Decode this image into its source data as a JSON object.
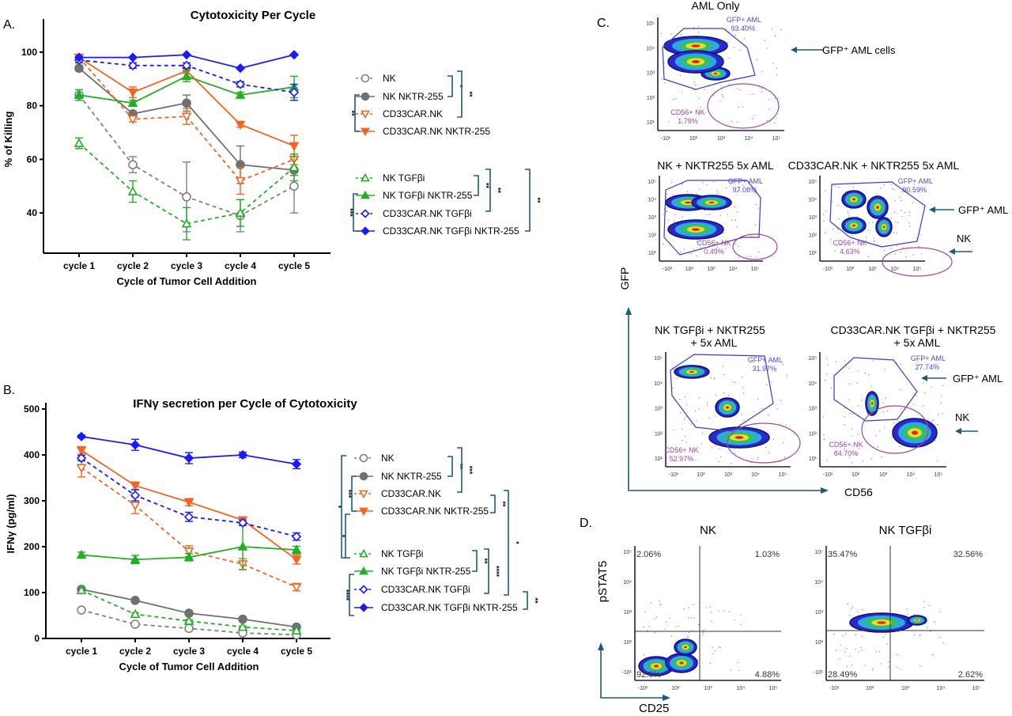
{
  "panels": {
    "a": "A.",
    "b": "B.",
    "c": "C.",
    "d": "D."
  },
  "legend_series": [
    {
      "name": "NK",
      "color": "#808080",
      "marker": "circle",
      "filled": false,
      "dashed": true
    },
    {
      "name": "NK NKTR-255",
      "color": "#707070",
      "marker": "circle",
      "filled": true,
      "dashed": false
    },
    {
      "name": "CD33CAR.NK",
      "color": "#f26522",
      "marker": "tri-down",
      "filled": false,
      "dashed": true
    },
    {
      "name": "CD33CAR.NK NKTR-255",
      "color": "#f26522",
      "marker": "tri-down",
      "filled": true,
      "dashed": false
    },
    {
      "name": "NK TGFβi",
      "color": "#22b022",
      "marker": "tri-up",
      "filled": false,
      "dashed": true
    },
    {
      "name": "NK TGFβi NKTR-255",
      "color": "#22b022",
      "marker": "tri-up",
      "filled": true,
      "dashed": false
    },
    {
      "name": "CD33CAR.NK TGFβi",
      "color": "#1a1aff",
      "marker": "diamond",
      "filled": false,
      "dashed": true
    },
    {
      "name": "CD33CAR.NK TGFβi NKTR-255",
      "color": "#1a1aff",
      "marker": "diamond",
      "filled": true,
      "dashed": false
    }
  ],
  "chart_data": [
    {
      "type": "line",
      "title": "Cytotoxicity Per Cycle",
      "xlabel": "Cycle of Tumor Cell Addition",
      "ylabel": "% of Killing",
      "categories": [
        "cycle 1",
        "cycle 2",
        "cycle 3",
        "cycle 4",
        "cycle 5"
      ],
      "yticks": [
        40,
        60,
        80,
        100
      ],
      "ylim": [
        25,
        110
      ],
      "error_bars": true,
      "legend": "right",
      "series": [
        {
          "name": "NK",
          "values": [
            84,
            58,
            46,
            39,
            50
          ],
          "errors": [
            1,
            3,
            13,
            6,
            10
          ]
        },
        {
          "name": "NK NKTR-255",
          "values": [
            94,
            77,
            81,
            58,
            56
          ],
          "errors": [
            1,
            1,
            3,
            7,
            2
          ]
        },
        {
          "name": "CD33CAR.NK",
          "values": [
            98,
            75,
            76,
            52,
            60
          ],
          "errors": [
            1,
            1,
            3,
            5,
            2
          ]
        },
        {
          "name": "CD33CAR.NK NKTR-255",
          "values": [
            98,
            85,
            93,
            73,
            65
          ],
          "errors": [
            1,
            2,
            1,
            1,
            4
          ]
        },
        {
          "name": "NK TGFβi",
          "values": [
            66,
            48,
            36,
            40,
            57
          ],
          "errors": [
            2,
            4,
            6,
            5,
            5
          ]
        },
        {
          "name": "NK TGFβi NKTR-255",
          "values": [
            84,
            81,
            91,
            84,
            87
          ],
          "errors": [
            2,
            1,
            2,
            1,
            4
          ]
        },
        {
          "name": "CD33CAR.NK TGFβi",
          "values": [
            97,
            95,
            95,
            88,
            85
          ],
          "errors": [
            1,
            1,
            1,
            1,
            3
          ]
        },
        {
          "name": "CD33CAR.NK TGFβi NKTR-255",
          "values": [
            98,
            98,
            99,
            94,
            99
          ],
          "errors": [
            0,
            0,
            0,
            0,
            0
          ]
        }
      ],
      "significance": [
        "*",
        "**",
        "**",
        "**",
        "**",
        "***",
        "**"
      ]
    },
    {
      "type": "line",
      "title": "IFNγ secretion per Cycle of Cytotoxicity",
      "xlabel": "Cycle of Tumor Cell Addition",
      "ylabel": "IFNγ (pg/ml)",
      "categories": [
        "cycle 1",
        "cycle 2",
        "cycle 3",
        "cycle 4",
        "cycle 5"
      ],
      "yticks": [
        0,
        100,
        200,
        300,
        400,
        500
      ],
      "ylim": [
        0,
        500
      ],
      "error_bars": true,
      "legend": "right",
      "series": [
        {
          "name": "NK",
          "values": [
            62,
            31,
            22,
            12,
            8
          ],
          "errors": [
            2,
            2,
            2,
            2,
            1
          ]
        },
        {
          "name": "NK NKTR-255",
          "values": [
            107,
            83,
            55,
            42,
            25
          ],
          "errors": [
            3,
            3,
            2,
            2,
            2
          ]
        },
        {
          "name": "CD33CAR.NK",
          "values": [
            372,
            290,
            190,
            162,
            112
          ],
          "errors": [
            20,
            18,
            12,
            12,
            8
          ]
        },
        {
          "name": "CD33CAR.NK NKTR-255",
          "values": [
            410,
            333,
            297,
            258,
            172
          ],
          "errors": [
            8,
            8,
            8,
            6,
            10
          ]
        },
        {
          "name": "NK TGFβi",
          "values": [
            105,
            53,
            38,
            25,
            17
          ],
          "errors": [
            3,
            3,
            3,
            2,
            2
          ]
        },
        {
          "name": "NK TGFβi NKTR-255",
          "values": [
            182,
            172,
            177,
            200,
            193
          ],
          "errors": [
            6,
            9,
            8,
            50,
            8
          ]
        },
        {
          "name": "CD33CAR.NK TGFβi",
          "values": [
            393,
            312,
            265,
            252,
            222
          ],
          "errors": [
            6,
            12,
            10,
            6,
            8
          ]
        },
        {
          "name": "CD33CAR.NK TGFβi NKTR-255",
          "values": [
            440,
            422,
            393,
            400,
            380
          ],
          "errors": [
            3,
            12,
            12,
            6,
            10
          ]
        }
      ],
      "significance": [
        "***",
        "**",
        "***",
        "**",
        "*",
        "*",
        "**",
        "****",
        "*",
        "****",
        "**"
      ]
    }
  ],
  "flow_c": {
    "x_axis": "CD56",
    "y_axis": "GFP",
    "ticks_x": [
      "-10¹",
      "10²",
      "10³",
      "10⁴",
      "10⁵"
    ],
    "ticks_y": [
      "10⁵",
      "10⁴",
      "10³",
      "10²",
      "10¹"
    ],
    "plots": [
      {
        "title": "AML Only",
        "gfp_gate": "GFP+ AML",
        "gfp_pct": "93.40%",
        "nk_gate": "CD56+ NK",
        "nk_pct": "1.79%",
        "arrow_label": "GFP⁺ AML cells"
      },
      {
        "title": "NK + NKTR255  5x AML",
        "gfp_gate": "GFP+ AML",
        "gfp_pct": "97.08%",
        "nk_gate": "CD56+ NK",
        "nk_pct": "0.49%"
      },
      {
        "title": "CD33CAR.NK + NKTR255   5x AML",
        "gfp_gate": "GFP+ AML",
        "gfp_pct": "90.59%",
        "nk_gate": "CD56+ NK",
        "nk_pct": "4.63%",
        "arrow_label": "GFP⁺ AML",
        "arrow_label2": "NK"
      },
      {
        "title": "NK TGFβi  + NKTR255",
        "title2": "+ 5x AML",
        "gfp_gate": "GFP+ AML",
        "gfp_pct": "31.97%",
        "nk_gate": "CD56+ NK",
        "nk_pct": "52.97%"
      },
      {
        "title": "CD33CAR.NK TGFβi  + NKTR255",
        "title2": "+ 5x AML",
        "gfp_gate": "GFP+ AML",
        "gfp_pct": "27.74%",
        "nk_gate": "CD56+ NK",
        "nk_pct": "64.70%",
        "arrow_label": "GFP⁺ AML",
        "arrow_label2": "NK"
      }
    ]
  },
  "flow_d": {
    "x_axis": "CD25",
    "y_axis": "pSTAT5",
    "ticks_x": [
      "-10¹",
      "10²",
      "10³",
      "10⁴",
      "10⁵"
    ],
    "ticks_y": [
      "10⁵",
      "10⁴",
      "10³",
      "10²",
      "-10¹"
    ],
    "plots": [
      {
        "title": "NK",
        "q_ul": "2.06%",
        "q_ur": "1.03%",
        "q_ll": "92.0%",
        "q_lr": "4.88%"
      },
      {
        "title": "NK TGFβi",
        "q_ul": "35.47%",
        "q_ur": "32.56%",
        "q_ll": "28.49%",
        "q_lr": "2.62%"
      }
    ]
  }
}
